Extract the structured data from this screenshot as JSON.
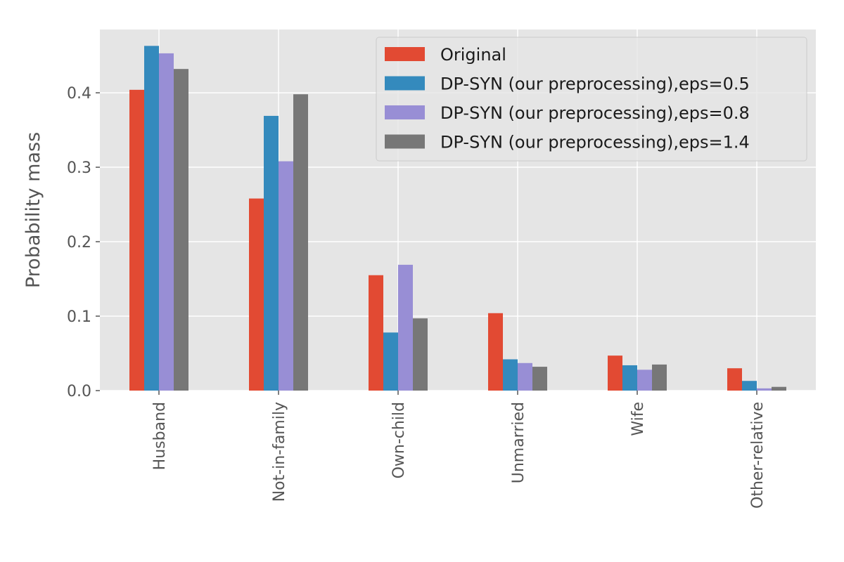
{
  "chart_data": {
    "type": "bar",
    "title": "",
    "xlabel": "",
    "ylabel": "Probability mass",
    "ylim": [
      0,
      0.485
    ],
    "yticks": [
      "0.0",
      "0.1",
      "0.2",
      "0.3",
      "0.4"
    ],
    "categories": [
      "Husband",
      "Not-in-family",
      "Own-child",
      "Unmarried",
      "Wife",
      "Other-relative"
    ],
    "grid": true,
    "legend_position": "top-right",
    "series": [
      {
        "name": "Original",
        "color": "#E24A33",
        "values": [
          0.404,
          0.258,
          0.155,
          0.104,
          0.047,
          0.03
        ]
      },
      {
        "name": "DP-SYN (our preprocessing),eps=0.5",
        "color": "#348ABD",
        "values": [
          0.463,
          0.369,
          0.078,
          0.042,
          0.034,
          0.013
        ]
      },
      {
        "name": "DP-SYN (our preprocessing),eps=0.8",
        "color": "#988ED5",
        "values": [
          0.453,
          0.308,
          0.169,
          0.037,
          0.028,
          0.003
        ]
      },
      {
        "name": "DP-SYN (our preprocessing),eps=1.4",
        "color": "#777777",
        "values": [
          0.432,
          0.398,
          0.097,
          0.032,
          0.035,
          0.005
        ]
      }
    ]
  }
}
